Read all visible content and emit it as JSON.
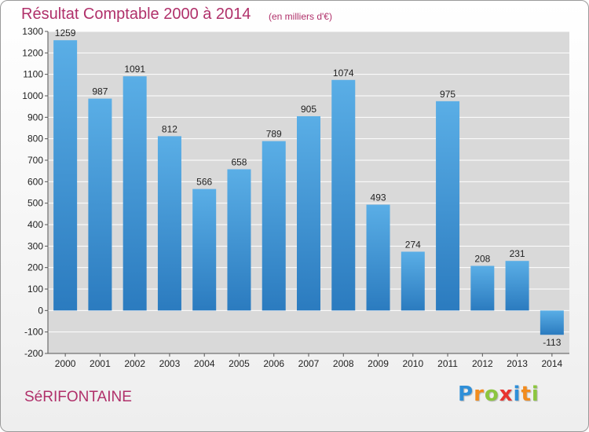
{
  "chart_data": {
    "type": "bar",
    "title": "Résultat Comptable 2000 à 2014",
    "subtitle": "(en milliers d'€)",
    "categories": [
      "2000",
      "2001",
      "2002",
      "2003",
      "2004",
      "2005",
      "2006",
      "2007",
      "2008",
      "2009",
      "2010",
      "2011",
      "2012",
      "2013",
      "2014"
    ],
    "values": [
      1259,
      987,
      1091,
      812,
      566,
      658,
      789,
      905,
      1074,
      493,
      274,
      975,
      208,
      231,
      -113
    ],
    "value_labels": [
      "1259",
      "987",
      "1091",
      "812",
      "566",
      "658",
      "789",
      "905",
      "1074",
      "493",
      "274",
      "975",
      "208",
      "231",
      "-113"
    ],
    "y_ticks": [
      -200,
      -100,
      0,
      100,
      200,
      300,
      400,
      500,
      600,
      700,
      800,
      900,
      1000,
      1100,
      1200,
      1300
    ],
    "ylim": [
      -200,
      1300
    ],
    "xlabel": "",
    "ylabel": "",
    "grid": true,
    "bar_color_top": "#5aaee6",
    "bar_color_bottom": "#2b7bbf"
  },
  "footer": {
    "commune": "SéRIFONTAINE",
    "logo_letters": [
      "P",
      "r",
      "o",
      "x",
      "i",
      "t",
      "i"
    ],
    "logo_colors": [
      "#2f8fd8",
      "#f28c1e",
      "#8cc63f",
      "#e8342f",
      "#2f8fd8",
      "#f28c1e",
      "#8cc63f"
    ]
  },
  "colors": {
    "accent": "#b0306a",
    "gridline": "#ffffff",
    "axis": "#555555"
  }
}
